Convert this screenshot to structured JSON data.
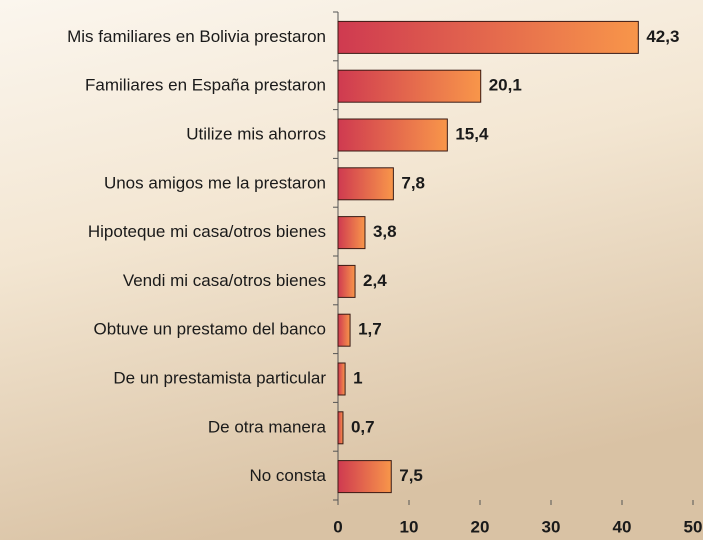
{
  "chart_data": {
    "type": "bar",
    "orientation": "horizontal",
    "categories": [
      "Mis familiares en Bolivia prestaron",
      "Familiares en España prestaron",
      "Utilize mis ahorros",
      "Unos amigos me la prestaron",
      "Hipoteque mi casa/otros bienes",
      "Vendi mi casa/otros bienes",
      "Obtuve un prestamo del banco",
      "De un prestamista particular",
      "De otra manera",
      "No consta"
    ],
    "values": [
      42.3,
      20.1,
      15.4,
      7.8,
      3.8,
      2.4,
      1.7,
      1,
      0.7,
      7.5
    ],
    "value_labels": [
      "42,3",
      "20,1",
      "15,4",
      "7,8",
      "3,8",
      "2,4",
      "1,7",
      "1",
      "0,7",
      "7,5"
    ],
    "colors": [
      "#cf3a50",
      "#f8964a"
    ],
    "xlim": [
      0,
      50
    ],
    "xticks": [
      0,
      10,
      20,
      30,
      40,
      50
    ]
  }
}
